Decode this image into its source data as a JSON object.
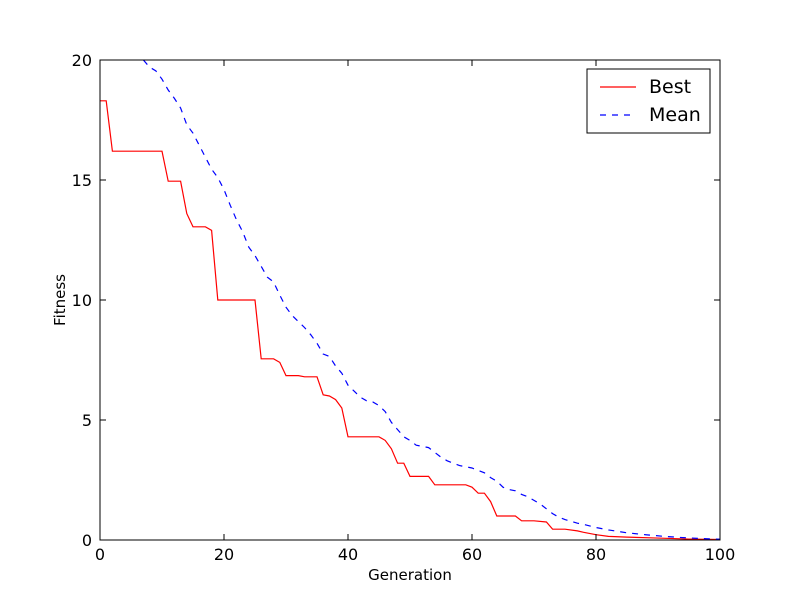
{
  "chart_data": {
    "type": "line",
    "title": "",
    "xlabel": "Generation",
    "ylabel": "Fitness",
    "xlim": [
      0,
      100
    ],
    "ylim": [
      0,
      20
    ],
    "xticks": [
      "0",
      "20",
      "40",
      "60",
      "80",
      "100"
    ],
    "yticks": [
      "0",
      "5",
      "10",
      "15",
      "20"
    ],
    "grid": false,
    "legend": "top-right",
    "series": [
      {
        "name": "Best",
        "color": "#ff0000",
        "style": "solid",
        "points": [
          [
            0,
            18.3
          ],
          [
            1,
            18.3
          ],
          [
            2,
            16.2
          ],
          [
            10,
            16.2
          ],
          [
            11,
            14.95
          ],
          [
            13,
            14.95
          ],
          [
            14,
            13.6
          ],
          [
            15,
            13.05
          ],
          [
            17,
            13.05
          ],
          [
            18,
            12.9
          ],
          [
            19,
            10.0
          ],
          [
            25,
            10.0
          ],
          [
            26,
            7.55
          ],
          [
            28,
            7.55
          ],
          [
            29,
            7.4
          ],
          [
            30,
            6.85
          ],
          [
            32,
            6.85
          ],
          [
            33,
            6.8
          ],
          [
            35,
            6.8
          ],
          [
            36,
            6.05
          ],
          [
            37,
            6.0
          ],
          [
            38,
            5.85
          ],
          [
            39,
            5.5
          ],
          [
            40,
            4.3
          ],
          [
            45,
            4.3
          ],
          [
            46,
            4.15
          ],
          [
            47,
            3.8
          ],
          [
            48,
            3.2
          ],
          [
            49,
            3.2
          ],
          [
            50,
            2.65
          ],
          [
            53,
            2.65
          ],
          [
            54,
            2.3
          ],
          [
            59,
            2.3
          ],
          [
            60,
            2.2
          ],
          [
            61,
            1.95
          ],
          [
            62,
            1.95
          ],
          [
            63,
            1.6
          ],
          [
            64,
            1.0
          ],
          [
            67,
            1.0
          ],
          [
            68,
            0.8
          ],
          [
            70,
            0.8
          ],
          [
            72,
            0.75
          ],
          [
            73,
            0.45
          ],
          [
            75,
            0.45
          ],
          [
            77,
            0.38
          ],
          [
            78,
            0.32
          ],
          [
            80,
            0.22
          ],
          [
            82,
            0.15
          ],
          [
            85,
            0.12
          ],
          [
            90,
            0.08
          ],
          [
            95,
            0.04
          ],
          [
            100,
            0.02
          ]
        ]
      },
      {
        "name": "Mean",
        "color": "#0000ff",
        "style": "dashed",
        "points": [
          [
            7,
            20.0
          ],
          [
            8,
            19.7
          ],
          [
            9,
            19.55
          ],
          [
            10,
            19.2
          ],
          [
            11,
            18.75
          ],
          [
            12,
            18.4
          ],
          [
            13,
            18.0
          ],
          [
            14,
            17.3
          ],
          [
            15,
            16.95
          ],
          [
            16,
            16.45
          ],
          [
            17,
            15.95
          ],
          [
            18,
            15.45
          ],
          [
            19,
            15.1
          ],
          [
            20,
            14.6
          ],
          [
            21,
            13.95
          ],
          [
            22,
            13.35
          ],
          [
            23,
            12.85
          ],
          [
            24,
            12.2
          ],
          [
            25,
            11.85
          ],
          [
            26,
            11.4
          ],
          [
            27,
            10.95
          ],
          [
            28,
            10.75
          ],
          [
            29,
            10.2
          ],
          [
            30,
            9.7
          ],
          [
            31,
            9.35
          ],
          [
            32,
            9.1
          ],
          [
            33,
            8.85
          ],
          [
            34,
            8.55
          ],
          [
            35,
            8.2
          ],
          [
            36,
            7.75
          ],
          [
            37,
            7.65
          ],
          [
            38,
            7.25
          ],
          [
            39,
            6.95
          ],
          [
            40,
            6.45
          ],
          [
            41,
            6.2
          ],
          [
            42,
            5.95
          ],
          [
            43,
            5.8
          ],
          [
            44,
            5.75
          ],
          [
            45,
            5.6
          ],
          [
            46,
            5.35
          ],
          [
            47,
            4.9
          ],
          [
            48,
            4.6
          ],
          [
            49,
            4.3
          ],
          [
            50,
            4.15
          ],
          [
            51,
            3.95
          ],
          [
            52,
            3.9
          ],
          [
            53,
            3.85
          ],
          [
            54,
            3.65
          ],
          [
            55,
            3.45
          ],
          [
            56,
            3.3
          ],
          [
            57,
            3.2
          ],
          [
            58,
            3.1
          ],
          [
            59,
            3.05
          ],
          [
            60,
            3.0
          ],
          [
            61,
            2.9
          ],
          [
            62,
            2.8
          ],
          [
            63,
            2.6
          ],
          [
            64,
            2.45
          ],
          [
            65,
            2.2
          ],
          [
            66,
            2.1
          ],
          [
            67,
            2.05
          ],
          [
            68,
            1.9
          ],
          [
            69,
            1.8
          ],
          [
            70,
            1.65
          ],
          [
            71,
            1.5
          ],
          [
            72,
            1.3
          ],
          [
            73,
            1.1
          ],
          [
            74,
            0.95
          ],
          [
            75,
            0.85
          ],
          [
            76,
            0.78
          ],
          [
            77,
            0.7
          ],
          [
            78,
            0.65
          ],
          [
            80,
            0.52
          ],
          [
            82,
            0.42
          ],
          [
            85,
            0.3
          ],
          [
            88,
            0.22
          ],
          [
            91,
            0.15
          ],
          [
            94,
            0.1
          ],
          [
            97,
            0.06
          ],
          [
            100,
            0.03
          ]
        ]
      }
    ]
  }
}
